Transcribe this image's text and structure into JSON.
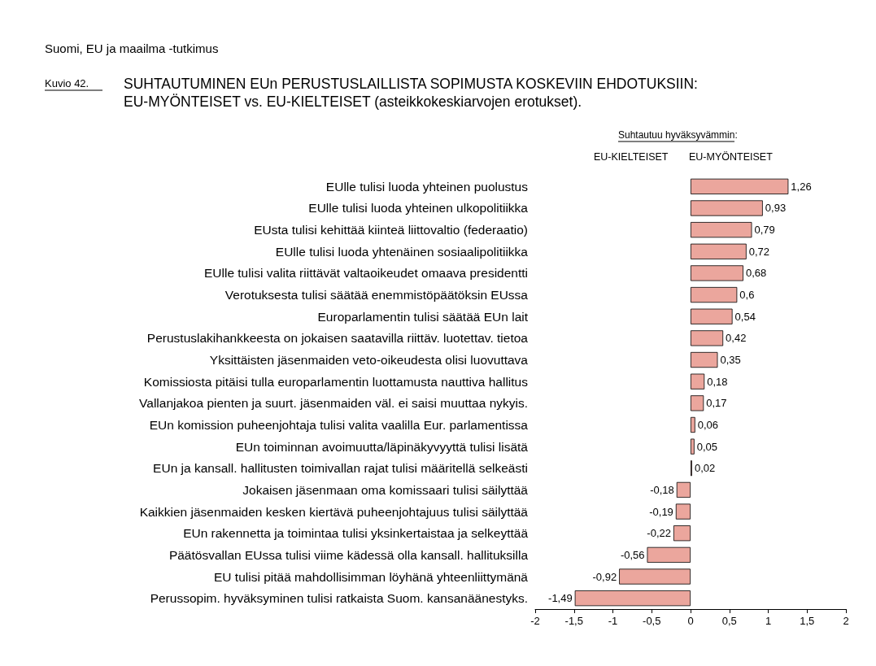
{
  "chart_data": {
    "type": "bar",
    "orientation": "horizontal",
    "title": "SUHTAUTUMINEN EUn PERUSTUSLAILLISTA SOPIMUSTA KOSKEVIIN EHDOTUKSIIN:\nEU-MYÖNTEISET vs. EU-KIELTEISET (asteikkokeskiarvojen erotukset).",
    "subtitle": "Suomi, EU ja maailma -tutkimus",
    "annotations": [
      "Kuvio 42.",
      "Suhtautuu hyväksyvämmin:",
      "EU-KIELTEISET",
      "EU-MYÖNTEISET"
    ],
    "categories": [
      "EUlle tulisi luoda yhteinen puolustus",
      "EUlle tulisi luoda yhteinen ulkopolitiikka",
      "EUsta tulisi kehittää kiinteä liittovaltio (federaatio)",
      "EUlle tulisi luoda yhtenäinen sosiaalipolitiikka",
      "EUlle tulisi valita riittävät valtaoikeudet omaava presidentti",
      "Verotuksesta tulisi säätää enemmistöpäätöksin EUssa",
      "Europarlamentin tulisi säätää EUn lait",
      "Perustuslakihankkeesta on jokaisen saatavilla riittäv. luotettav. tietoa",
      "Yksittäisten jäsenmaiden veto-oikeudesta olisi luovuttava",
      "Komissiosta pitäisi tulla europarlamentin luottamusta nauttiva hallitus",
      "Vallanjakoa pienten ja suurt. jäsenmaiden väl. ei saisi muuttaa nykyis.",
      "EUn komission puheenjohtaja tulisi valita vaalilla Eur. parlamentissa",
      "EUn toiminnan avoimuutta/läpinäkyvyyttä tulisi lisätä",
      "EUn ja kansall. hallitusten toimivallan rajat tulisi määritellä selkeästi",
      "Jokaisen jäsenmaan oma komissaari tulisi säilyttää",
      "Kaikkien jäsenmaiden kesken kiertävä puheenjohtajuus tulisi säilyttää",
      "EUn rakennetta ja toimintaa tulisi yksinkertaistaa ja selkeyttää",
      "Päätösvallan EUssa tulisi viime kädessä olla kansall. hallituksilla",
      "EU tulisi pitää mahdollisimman löyhänä yhteenliittymänä",
      "Perussopim. hyväksyminen tulisi ratkaista Suom. kansanäänestyks."
    ],
    "values": [
      1.26,
      0.93,
      0.79,
      0.72,
      0.68,
      0.6,
      0.54,
      0.42,
      0.35,
      0.18,
      0.17,
      0.06,
      0.05,
      0.02,
      -0.18,
      -0.19,
      -0.22,
      -0.56,
      -0.92,
      -1.49
    ],
    "value_labels": [
      "1,26",
      "0,93",
      "0,79",
      "0,72",
      "0,68",
      "0,6",
      "0,54",
      "0,42",
      "0,35",
      "0,18",
      "0,17",
      "0,06",
      "0,05",
      "0,02",
      "-0,18",
      "-0,19",
      "-0,22",
      "-0,56",
      "-0,92",
      "-1,49"
    ],
    "color": "#eba69d",
    "xlim": [
      -2,
      2
    ],
    "xticks": [
      -2,
      {
        "value": -1.5,
        "label": "-1,5"
      },
      -1,
      {
        "value": -0.5,
        "label": "-0,5"
      },
      0,
      {
        "value": 0.5,
        "label": "0,5"
      },
      1,
      {
        "value": 1.5,
        "label": "1,5"
      },
      2
    ],
    "grid": false
  }
}
